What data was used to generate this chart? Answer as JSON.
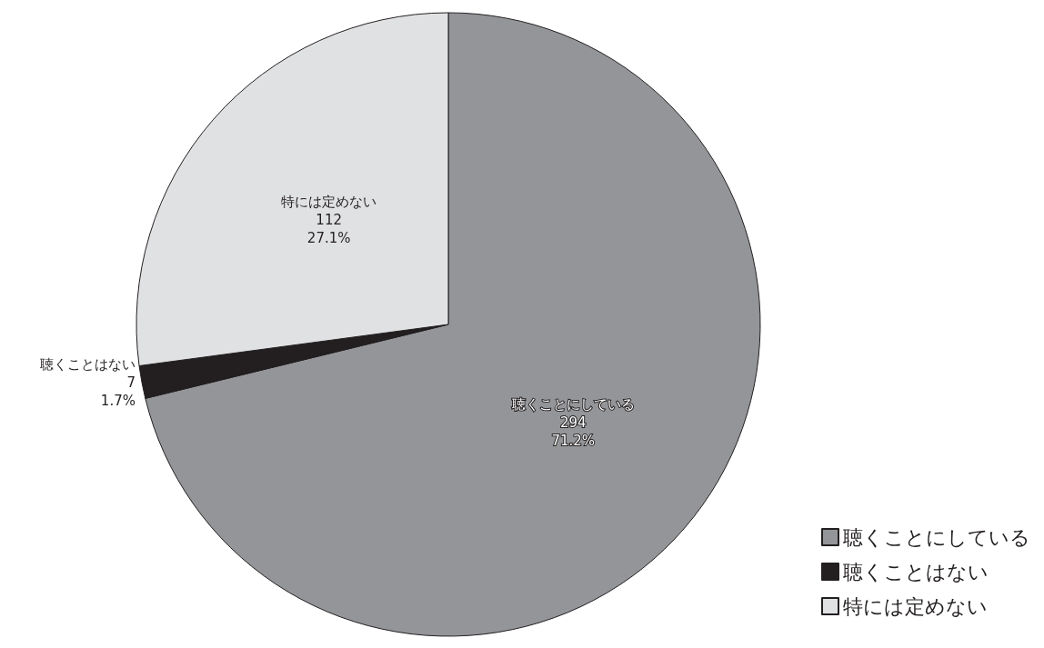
{
  "chart_data": {
    "type": "pie",
    "categories": [
      "聴くことにしている",
      "聴くことはない",
      "特には定めない"
    ],
    "values": [
      294,
      7,
      112
    ],
    "colors": [
      "#939598",
      "#231f20",
      "#e0e1e3"
    ],
    "value_labels": [
      "294\n71.2%",
      "7\n1.7%",
      "112\n27.1%"
    ],
    "legend": "bottom right"
  }
}
